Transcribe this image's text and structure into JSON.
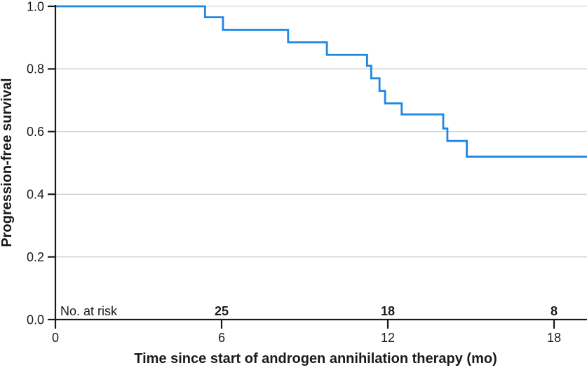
{
  "figure": {
    "background": "#ffffff"
  },
  "chart_data": {
    "type": "line",
    "variant": "kaplan-meier-step-curve",
    "title": "",
    "xlabel": "Time since start of androgen annihilation therapy (mo)",
    "ylabel": "Progression-free survival",
    "xlim": [
      0,
      19.2
    ],
    "ylim": [
      0.0,
      1.0
    ],
    "xticks": {
      "values": [
        0,
        6,
        12,
        18
      ],
      "labels": [
        "0",
        "6",
        "12",
        "18"
      ]
    },
    "yticks": {
      "values": [
        0.0,
        0.2,
        0.4,
        0.6,
        0.8,
        1.0
      ],
      "labels": [
        "0.0",
        "0.2",
        "0.4",
        "0.6",
        "0.8",
        "1.0"
      ]
    },
    "grid": {
      "horizontal": true,
      "vertical": false
    },
    "legend": "none",
    "series": [
      {
        "name": "Progression-free survival",
        "color": "#1e87e4",
        "t_end": 19.2,
        "step_points": [
          [
            0.0,
            1.0
          ],
          [
            5.4,
            0.965
          ],
          [
            6.05,
            0.925
          ],
          [
            8.4,
            0.885
          ],
          [
            9.8,
            0.845
          ],
          [
            11.25,
            0.81
          ],
          [
            11.4,
            0.77
          ],
          [
            11.7,
            0.73
          ],
          [
            11.9,
            0.69
          ],
          [
            12.5,
            0.655
          ],
          [
            14.0,
            0.61
          ],
          [
            14.15,
            0.57
          ],
          [
            14.85,
            0.52
          ]
        ]
      }
    ],
    "at_risk": {
      "label": "No. at risk",
      "color": "#1778dd",
      "entries": [
        {
          "t": 6,
          "n": "25"
        },
        {
          "t": 12,
          "n": "18"
        },
        {
          "t": 18,
          "n": "8"
        }
      ]
    },
    "colors": {
      "axis": "#1a1a1a",
      "grid": "#c6c6c6",
      "grid_top": "#dcdcdc",
      "text": "#1a1a1a"
    }
  }
}
